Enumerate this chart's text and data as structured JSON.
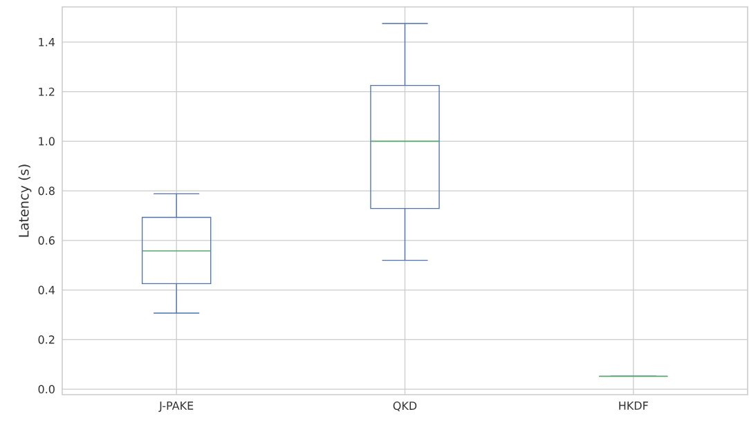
{
  "chart_data": {
    "type": "box",
    "ylabel": "Latency (s)",
    "categories": [
      "J-PAKE",
      "QKD",
      "HKDF"
    ],
    "boxes": [
      {
        "low": 0.307,
        "q1": 0.426,
        "median": 0.558,
        "q3": 0.693,
        "high": 0.788
      },
      {
        "low": 0.52,
        "q1": 0.729,
        "median": 1.0,
        "q3": 1.225,
        "high": 1.475
      },
      {
        "low": 0.052,
        "q1": 0.052,
        "median": 0.052,
        "q3": 0.052,
        "high": 0.052
      }
    ],
    "color": "#4c72b0",
    "ylim": [
      -0.022,
      1.542
    ],
    "yticks": [
      {
        "value": 0,
        "label": "0.0"
      },
      0.2,
      0.4,
      0.6,
      0.8,
      {
        "value": 1,
        "label": "1.0"
      },
      1.2,
      1.4
    ],
    "grid": true
  }
}
